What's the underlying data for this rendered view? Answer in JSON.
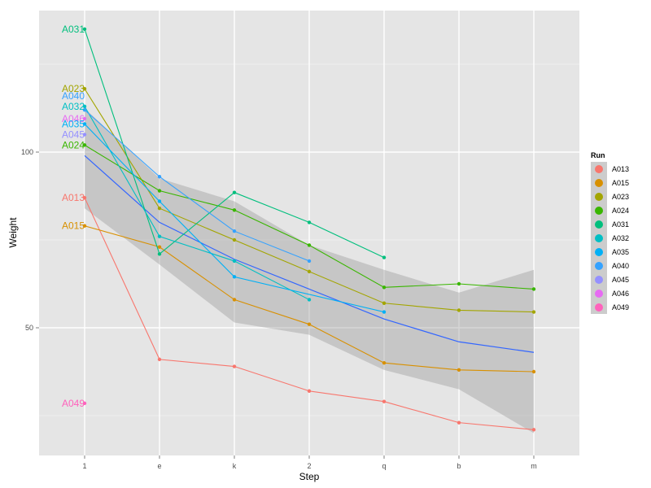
{
  "chart_data": {
    "type": "line",
    "xlabel": "Step",
    "ylabel": "Weight",
    "categories": [
      "1",
      "e",
      "k",
      "2",
      "q",
      "b",
      "m"
    ],
    "y_ticks": [
      50,
      100
    ],
    "ylim": [
      20,
      145
    ],
    "grid": true,
    "legend": {
      "title": "Run",
      "position": "right"
    },
    "series": [
      {
        "name": "A013",
        "color": "#F8766D",
        "values": [
          87,
          41,
          39,
          32,
          29,
          23,
          21
        ]
      },
      {
        "name": "A015",
        "color": "#D89000",
        "values": [
          79,
          73,
          58,
          51,
          40,
          38,
          37.5
        ]
      },
      {
        "name": "A023",
        "color": "#A3A500",
        "values": [
          118,
          84,
          75,
          66,
          57,
          55,
          54.5
        ]
      },
      {
        "name": "A024",
        "color": "#39B600",
        "values": [
          102,
          89,
          83.5,
          73.5,
          61.5,
          62.5,
          61
        ]
      },
      {
        "name": "A031",
        "color": "#00BF7D",
        "values": [
          135,
          71,
          88.5,
          80,
          70,
          null,
          null
        ]
      },
      {
        "name": "A032",
        "color": "#00BFC4",
        "values": [
          113,
          76,
          69,
          58,
          null,
          null,
          null
        ]
      },
      {
        "name": "A035",
        "color": "#00B0F6",
        "values": [
          108,
          86,
          64.5,
          null,
          54.5,
          null,
          null
        ]
      },
      {
        "name": "A040",
        "color": "#35A2FF",
        "values": [
          112,
          93,
          77.5,
          69,
          null,
          null,
          null
        ]
      },
      {
        "name": "A045",
        "color": "#9590FF",
        "values": [
          105,
          null,
          null,
          null,
          null,
          null,
          null
        ]
      },
      {
        "name": "A046",
        "color": "#E76BF3",
        "values": [
          109.5,
          null,
          null,
          null,
          null,
          null,
          null
        ]
      },
      {
        "name": "A049",
        "color": "#FF62BC",
        "values": [
          28.5,
          null,
          null,
          null,
          null,
          null,
          null
        ]
      }
    ],
    "smooth": {
      "color": "#3366FF",
      "fit": [
        99,
        80,
        69.5,
        61,
        52.5,
        46,
        43
      ],
      "lower": [
        84,
        68,
        51.5,
        48,
        38,
        32.5,
        20
      ],
      "upper": [
        112.5,
        92.5,
        86,
        73.5,
        66.5,
        60,
        66.5
      ]
    },
    "point_labels": [
      {
        "text": "A031",
        "series": "A031",
        "x": "1",
        "y": 135
      },
      {
        "text": "A023",
        "series": "A023",
        "x": "1",
        "y": 118
      },
      {
        "text": "A040",
        "series": "A040",
        "x": "1",
        "y": 116
      },
      {
        "text": "A032",
        "series": "A032",
        "x": "1",
        "y": 113
      },
      {
        "text": "A046",
        "series": "A046",
        "x": "1",
        "y": 109.5
      },
      {
        "text": "A035",
        "series": "A035",
        "x": "1",
        "y": 108
      },
      {
        "text": "A045",
        "series": "A045",
        "x": "1",
        "y": 105
      },
      {
        "text": "A024",
        "series": "A024",
        "x": "1",
        "y": 102
      },
      {
        "text": "A013",
        "series": "A013",
        "x": "1",
        "y": 87
      },
      {
        "text": "A015",
        "series": "A015",
        "x": "1",
        "y": 79
      },
      {
        "text": "A049",
        "series": "A049",
        "x": "1",
        "y": 28.5
      }
    ]
  }
}
